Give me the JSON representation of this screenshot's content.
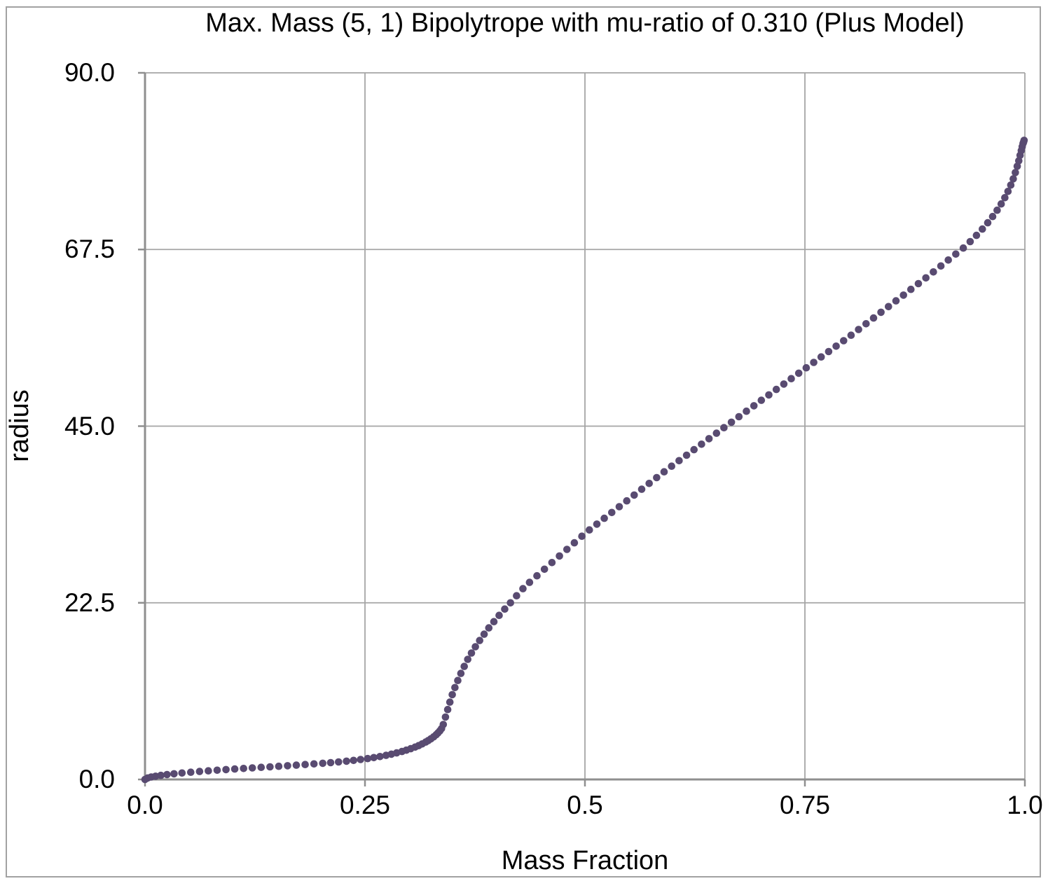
{
  "frame": {
    "border_color": "#a2a2a2"
  },
  "chart_data": {
    "type": "scatter",
    "title": "Max. Mass (5, 1) Bipolytrope with mu-ratio of 0.310 (Plus Model)",
    "xlabel": "Mass Fraction",
    "ylabel": "radius",
    "xlim": [
      0.0,
      1.0
    ],
    "ylim": [
      0.0,
      90.0
    ],
    "x_ticks": [
      "0.0",
      "0.25",
      "0.5",
      "0.75",
      "1.0"
    ],
    "x_tick_values": [
      0,
      0.25,
      0.5,
      0.75,
      1.0
    ],
    "y_ticks": [
      "90.0",
      "67.5",
      "45.0",
      "22.5",
      "0.0"
    ],
    "y_tick_values": [
      90,
      67.5,
      45,
      22.5,
      0
    ],
    "grid": true,
    "legend": "none",
    "grid_color": "#a5a5a5",
    "axis_color": "#8f8f8f",
    "marker_color": "#594b71",
    "marker_radius_px": 5.3,
    "series_name": "radius vs mass fraction",
    "points": [
      [
        0.0,
        0.0
      ],
      [
        0.003,
        0.19
      ],
      [
        0.007,
        0.31
      ],
      [
        0.012,
        0.41
      ],
      [
        0.018,
        0.52
      ],
      [
        0.025,
        0.62
      ],
      [
        0.033,
        0.72
      ],
      [
        0.042,
        0.82
      ],
      [
        0.052,
        0.92
      ],
      [
        0.062,
        1.02
      ],
      [
        0.072,
        1.1
      ],
      [
        0.082,
        1.18
      ],
      [
        0.092,
        1.26
      ],
      [
        0.102,
        1.33
      ],
      [
        0.112,
        1.4
      ],
      [
        0.122,
        1.47
      ],
      [
        0.132,
        1.54
      ],
      [
        0.142,
        1.61
      ],
      [
        0.152,
        1.68
      ],
      [
        0.162,
        1.75
      ],
      [
        0.172,
        1.82
      ],
      [
        0.182,
        1.9
      ],
      [
        0.192,
        1.98
      ],
      [
        0.202,
        2.06
      ],
      [
        0.211,
        2.14
      ],
      [
        0.22,
        2.23
      ],
      [
        0.229,
        2.33
      ],
      [
        0.237,
        2.43
      ],
      [
        0.245,
        2.54
      ],
      [
        0.253,
        2.66
      ],
      [
        0.26,
        2.78
      ],
      [
        0.267,
        2.92
      ],
      [
        0.274,
        3.07
      ],
      [
        0.28,
        3.22
      ],
      [
        0.286,
        3.38
      ],
      [
        0.292,
        3.56
      ],
      [
        0.297,
        3.73
      ],
      [
        0.302,
        3.92
      ],
      [
        0.307,
        4.12
      ],
      [
        0.311,
        4.31
      ],
      [
        0.315,
        4.52
      ],
      [
        0.319,
        4.76
      ],
      [
        0.322,
        4.96
      ],
      [
        0.325,
        5.18
      ],
      [
        0.328,
        5.42
      ],
      [
        0.331,
        5.7
      ],
      [
        0.333,
        5.92
      ],
      [
        0.335,
        6.18
      ],
      [
        0.337,
        6.48
      ],
      [
        0.339,
        7.0
      ],
      [
        0.3415,
        7.95
      ],
      [
        0.344,
        8.9
      ],
      [
        0.3465,
        9.85
      ],
      [
        0.3492,
        10.8
      ],
      [
        0.3522,
        11.7
      ],
      [
        0.3555,
        12.6
      ],
      [
        0.359,
        13.5
      ],
      [
        0.3628,
        14.4
      ],
      [
        0.3668,
        15.3
      ],
      [
        0.371,
        16.1
      ],
      [
        0.3755,
        16.9
      ],
      [
        0.3803,
        17.7
      ],
      [
        0.3854,
        18.5
      ],
      [
        0.3908,
        19.3
      ],
      [
        0.3965,
        20.1
      ],
      [
        0.4025,
        20.9
      ],
      [
        0.4088,
        21.7
      ],
      [
        0.4154,
        22.5
      ],
      [
        0.4223,
        23.4
      ],
      [
        0.4295,
        24.3
      ],
      [
        0.437,
        25.1
      ],
      [
        0.4455,
        25.94
      ],
      [
        0.454,
        26.78
      ],
      [
        0.4625,
        27.62
      ],
      [
        0.471,
        28.46
      ],
      [
        0.4795,
        29.3
      ],
      [
        0.488,
        30.14
      ],
      [
        0.4965,
        30.98
      ],
      [
        0.505,
        31.78
      ],
      [
        0.5135,
        32.52
      ],
      [
        0.522,
        33.26
      ],
      [
        0.5305,
        34.0
      ],
      [
        0.539,
        34.74
      ],
      [
        0.5475,
        35.48
      ],
      [
        0.556,
        36.22
      ],
      [
        0.5645,
        36.96
      ],
      [
        0.573,
        37.7
      ],
      [
        0.5815,
        38.44
      ],
      [
        0.59,
        39.18
      ],
      [
        0.5985,
        39.9
      ],
      [
        0.607,
        40.6
      ],
      [
        0.6155,
        41.3
      ],
      [
        0.624,
        42.0
      ],
      [
        0.6325,
        42.7
      ],
      [
        0.641,
        43.4
      ],
      [
        0.6495,
        44.1
      ],
      [
        0.658,
        44.8
      ],
      [
        0.6665,
        45.5
      ],
      [
        0.675,
        46.2
      ],
      [
        0.6835,
        46.9
      ],
      [
        0.692,
        47.6
      ],
      [
        0.7005,
        48.29
      ],
      [
        0.709,
        48.98
      ],
      [
        0.7175,
        49.67
      ],
      [
        0.726,
        50.36
      ],
      [
        0.7345,
        51.05
      ],
      [
        0.743,
        51.74
      ],
      [
        0.7515,
        52.43
      ],
      [
        0.76,
        53.12
      ],
      [
        0.7685,
        53.81
      ],
      [
        0.777,
        54.5
      ],
      [
        0.7855,
        55.19
      ],
      [
        0.794,
        55.88
      ],
      [
        0.8025,
        56.58
      ],
      [
        0.811,
        57.31
      ],
      [
        0.8195,
        58.04
      ],
      [
        0.828,
        58.77
      ],
      [
        0.8365,
        59.5
      ],
      [
        0.845,
        60.23
      ],
      [
        0.8535,
        60.96
      ],
      [
        0.862,
        61.69
      ],
      [
        0.8705,
        62.42
      ],
      [
        0.879,
        63.15
      ],
      [
        0.8875,
        63.88
      ],
      [
        0.896,
        64.64
      ],
      [
        0.9045,
        65.4
      ],
      [
        0.913,
        66.16
      ],
      [
        0.9215,
        66.92
      ],
      [
        0.93,
        67.68
      ],
      [
        0.9378,
        68.5
      ],
      [
        0.945,
        69.3
      ],
      [
        0.9517,
        70.1
      ],
      [
        0.9578,
        70.9
      ],
      [
        0.9634,
        71.7
      ],
      [
        0.9685,
        72.5
      ],
      [
        0.9731,
        73.3
      ],
      [
        0.9772,
        74.1
      ],
      [
        0.9808,
        74.9
      ],
      [
        0.984,
        75.7
      ],
      [
        0.9868,
        76.5
      ],
      [
        0.9892,
        77.3
      ],
      [
        0.9913,
        78.1
      ],
      [
        0.9931,
        78.8
      ],
      [
        0.9946,
        79.5
      ],
      [
        0.9959,
        80.1
      ],
      [
        0.997,
        80.6
      ],
      [
        0.9979,
        81.0
      ],
      [
        0.9986,
        81.2
      ],
      [
        0.9991,
        81.4
      ]
    ]
  }
}
